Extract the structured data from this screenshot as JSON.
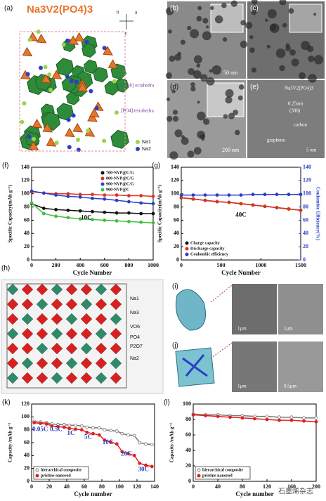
{
  "figures": [
    {
      "panel": "(a)",
      "title": "Na3V2(PO4)3",
      "labels": [
        "[VO6] octahedra",
        "[PO4] tetrahedra",
        "Na1",
        "Na2",
        "b",
        "a",
        "c"
      ]
    },
    {
      "panel": "(b)",
      "labels": [
        "50 nm"
      ]
    },
    {
      "panel": "(c)"
    },
    {
      "panel": "(d)",
      "labels": [
        "200 nm"
      ]
    },
    {
      "panel": "(e)",
      "labels": [
        "Na3V2(PO4)3",
        "0.25nm",
        "(300)",
        "carbon",
        "graphene",
        "5 nm"
      ]
    },
    {
      "panel": "(h)",
      "labels": [
        "Na1",
        "Na3",
        "VO6",
        "PO4",
        "P2O7",
        "Na2"
      ]
    },
    {
      "panel": "(i)",
      "labels": [
        "1μm",
        "1μm"
      ]
    },
    {
      "panel": "(j)",
      "labels": [
        "1μm",
        "0.5μm"
      ]
    }
  ],
  "watermark": "石墨烯杂志",
  "chart_data": [
    {
      "type": "line",
      "panel": "(f)",
      "x_label": "Cycle Number",
      "y_label": "Specific Capacity(mAh g⁻¹)",
      "x": [
        0,
        100,
        200,
        300,
        400,
        500,
        600,
        700,
        800,
        900,
        1000
      ],
      "xlim": [
        0,
        1000
      ],
      "xticks": [
        0,
        200,
        400,
        600,
        800,
        1000
      ],
      "ylim": [
        0,
        140
      ],
      "yticks": [
        0,
        20,
        40,
        60,
        80,
        100,
        120,
        140
      ],
      "legend": "top-right",
      "annotations": [
        "10C"
      ],
      "series": [
        {
          "name": "700-NVP@C/G",
          "color": "#111111",
          "values": [
            85,
            78,
            76,
            75,
            74,
            73,
            72,
            71,
            71,
            70,
            70
          ]
        },
        {
          "name": "800-NVP@C/G",
          "color": "#e0301e",
          "values": [
            103,
            101,
            100,
            100,
            99,
            99,
            98,
            98,
            97,
            97,
            96
          ]
        },
        {
          "name": "900-NVP@C/G",
          "color": "#2b3fc4",
          "values": [
            104,
            101,
            98,
            96,
            95,
            93,
            92,
            90,
            88,
            86,
            85
          ]
        },
        {
          "name": "900-NVP@C",
          "color": "#3fbf3f",
          "values": [
            86,
            70,
            66,
            64,
            62,
            61,
            60,
            59,
            58,
            57,
            56
          ]
        }
      ]
    },
    {
      "type": "line",
      "panel": "(g)",
      "x_label": "Cycle Number",
      "y_label": "Specific Capacity(mAh g⁻¹)",
      "y2_label": "Coulombic Efficiency(%)",
      "x": [
        0,
        150,
        300,
        450,
        600,
        750,
        900,
        1050,
        1200,
        1350,
        1500
      ],
      "xlim": [
        0,
        1500
      ],
      "xticks": [
        0,
        500,
        1000,
        1500
      ],
      "ylim": [
        0,
        140
      ],
      "yticks": [
        0,
        20,
        40,
        60,
        80,
        100,
        120,
        140
      ],
      "y2lim": [
        0,
        140
      ],
      "y2ticks": [
        0,
        20,
        40,
        60,
        80,
        100,
        120,
        140
      ],
      "legend": "bottom-left",
      "annotations": [
        "40C"
      ],
      "series": [
        {
          "name": "Charge capacity",
          "color": "#111111",
          "values": [
            94,
            92,
            90,
            88,
            87,
            85,
            83,
            81,
            79,
            77,
            75
          ]
        },
        {
          "name": "Discharge capacity",
          "color": "#e0301e",
          "values": [
            94,
            92,
            90,
            88,
            87,
            85,
            83,
            81,
            79,
            77,
            75
          ]
        },
        {
          "name": "Coulombic efficiency",
          "color": "#2b3fc4",
          "axis": "y2",
          "values": [
            98,
            98,
            98,
            98,
            98,
            98,
            99,
            99,
            99,
            99,
            99
          ]
        }
      ]
    },
    {
      "type": "line",
      "panel": "(k)",
      "x_label": "Cycle number",
      "y_label": "Capacity /mAh g⁻¹",
      "x": [
        3,
        10,
        17,
        23,
        30,
        37,
        43,
        50,
        57,
        63,
        70,
        77,
        83,
        90,
        97,
        103,
        110,
        117,
        123,
        130,
        137
      ],
      "xlim": [
        0,
        140
      ],
      "xticks": [
        0,
        20,
        40,
        60,
        80,
        100,
        120,
        140
      ],
      "ylim": [
        0,
        120
      ],
      "yticks": [
        0,
        20,
        40,
        60,
        80,
        100,
        120
      ],
      "legend": "bottom-left",
      "annotations": [
        "0.05C",
        "0.5C",
        "1C",
        "5C",
        "10C",
        "20C",
        "30C"
      ],
      "series": [
        {
          "name": "hierarchical composite",
          "color": "#777777",
          "fill": "#ffffff",
          "values": [
            93,
            92,
            91,
            89,
            88,
            88,
            87,
            87,
            86,
            84,
            83,
            83,
            80,
            79,
            78,
            74,
            72,
            71,
            60,
            58,
            57
          ]
        },
        {
          "name": "pristine nanorod",
          "color": "#e02020",
          "fill": "#e02020",
          "values": [
            91,
            90,
            89,
            86,
            85,
            84,
            82,
            81,
            80,
            76,
            74,
            72,
            64,
            61,
            58,
            46,
            43,
            40,
            28,
            25,
            23
          ]
        }
      ]
    },
    {
      "type": "line",
      "panel": "(l)",
      "x_label": "Cycle number",
      "y_label": "Capacity /mAh g⁻¹",
      "x": [
        0,
        20,
        40,
        60,
        80,
        100,
        120,
        140,
        160,
        180,
        200
      ],
      "xlim": [
        0,
        200
      ],
      "xticks": [
        0,
        40,
        80,
        120,
        160,
        200
      ],
      "ylim": [
        0,
        100
      ],
      "yticks": [
        0,
        20,
        40,
        60,
        80,
        100
      ],
      "legend": "bottom-left",
      "series": [
        {
          "name": "hierarchical composite",
          "color": "#777777",
          "fill": "#ffffff",
          "values": [
            87,
            86,
            86,
            85,
            85,
            84,
            84,
            83,
            83,
            82,
            82
          ]
        },
        {
          "name": "pristine nanorod",
          "color": "#e02020",
          "fill": "#e02020",
          "values": [
            86,
            85,
            84,
            83,
            82,
            81,
            80,
            79,
            79,
            78,
            77
          ]
        }
      ]
    }
  ]
}
